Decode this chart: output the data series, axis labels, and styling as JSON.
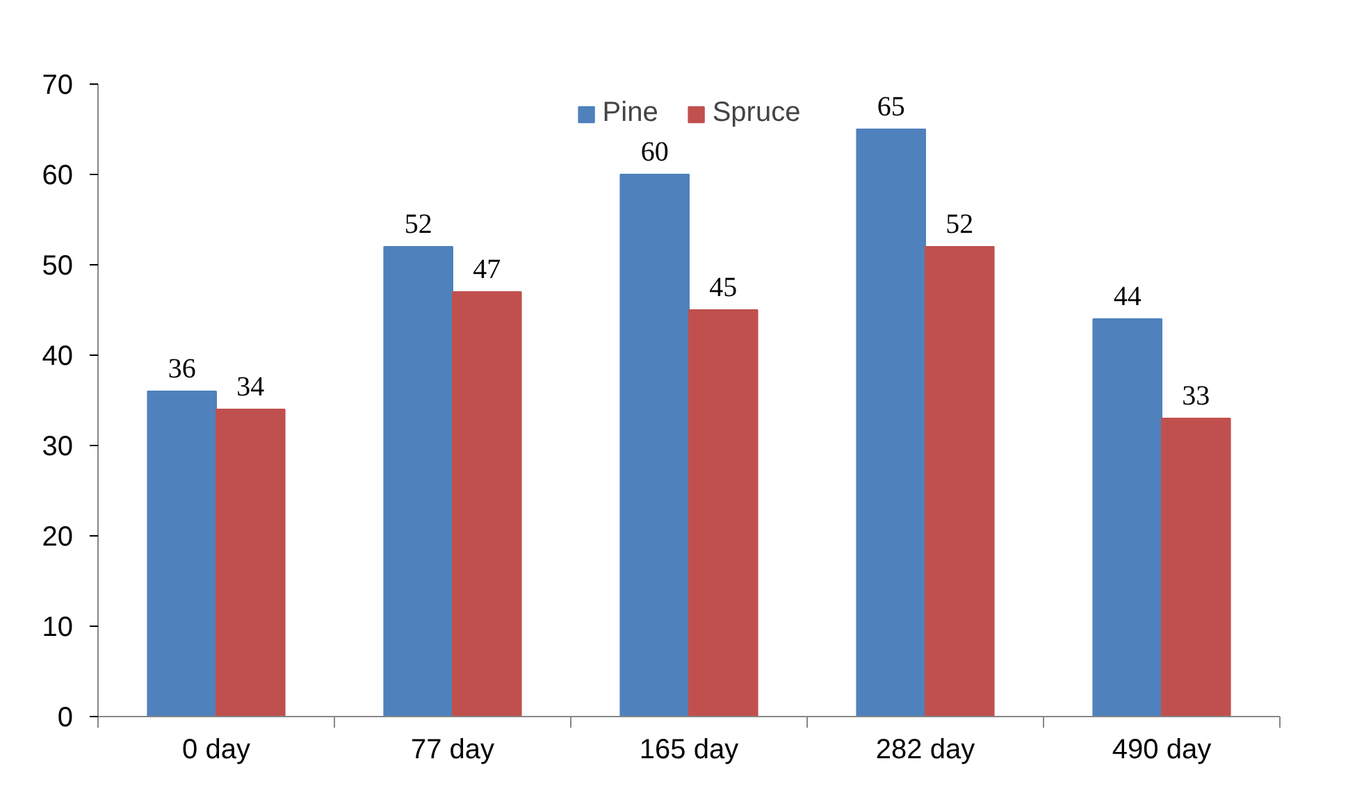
{
  "chart_data": {
    "type": "bar",
    "categories": [
      "0 day",
      "77 day",
      "165 day",
      "282 day",
      "490 day"
    ],
    "series": [
      {
        "name": "Pine",
        "color": "#4f81bd",
        "values": [
          36,
          52,
          60,
          65,
          44
        ]
      },
      {
        "name": "Spruce",
        "color": "#c0504d",
        "values": [
          34,
          47,
          45,
          52,
          33
        ]
      }
    ],
    "ylim": [
      0,
      70
    ],
    "yticks": [
      0,
      10,
      20,
      30,
      40,
      50,
      60,
      70
    ],
    "grid": false,
    "legend": "top",
    "data_labels": true
  }
}
